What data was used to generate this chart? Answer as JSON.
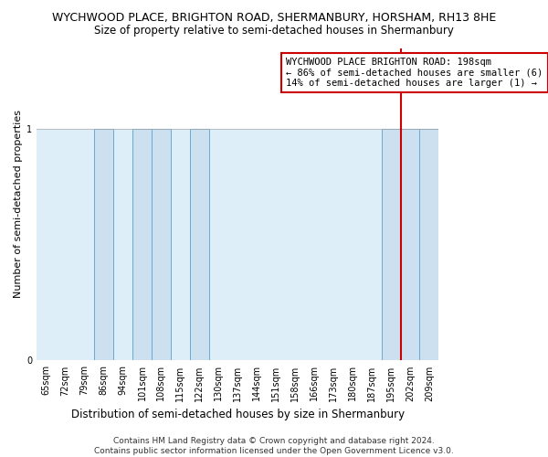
{
  "title": "WYCHWOOD PLACE, BRIGHTON ROAD, SHERMANBURY, HORSHAM, RH13 8HE",
  "subtitle": "Size of property relative to semi-detached houses in Shermanbury",
  "xlabel": "Distribution of semi-detached houses by size in Shermanbury",
  "ylabel": "Number of semi-detached properties",
  "footer": "Contains HM Land Registry data © Crown copyright and database right 2024.\nContains public sector information licensed under the Open Government Licence v3.0.",
  "categories": [
    "65sqm",
    "72sqm",
    "79sqm",
    "86sqm",
    "94sqm",
    "101sqm",
    "108sqm",
    "115sqm",
    "122sqm",
    "130sqm",
    "137sqm",
    "144sqm",
    "151sqm",
    "158sqm",
    "166sqm",
    "173sqm",
    "180sqm",
    "187sqm",
    "195sqm",
    "202sqm",
    "209sqm"
  ],
  "bar_heights": [
    0,
    0,
    0,
    1,
    0,
    1,
    1,
    0,
    1,
    0,
    0,
    0,
    0,
    0,
    0,
    0,
    0,
    0,
    1,
    1,
    1
  ],
  "bar_color": "#cce0f0",
  "bar_edge_color": "#6aaad4",
  "bg_fill_color": "#ddeef8",
  "red_line_index": 18,
  "annotation_text": "WYCHWOOD PLACE BRIGHTON ROAD: 198sqm\n← 86% of semi-detached houses are smaller (6)\n14% of semi-detached houses are larger (1) →",
  "annotation_box_color": "#ffffff",
  "annotation_box_edge": "#cc0000",
  "ylim": [
    0,
    1.35
  ],
  "yticks": [
    0,
    1
  ],
  "title_fontsize": 9,
  "subtitle_fontsize": 8.5,
  "xlabel_fontsize": 8.5,
  "ylabel_fontsize": 8,
  "tick_fontsize": 7,
  "annotation_fontsize": 7.5,
  "footer_fontsize": 6.5,
  "background_color": "#ffffff"
}
